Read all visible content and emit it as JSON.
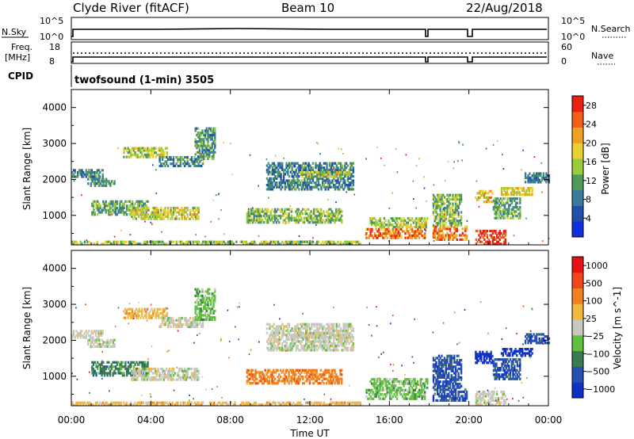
{
  "header": {
    "station": "Clyde River (fitACF)",
    "beam": "Beam 10",
    "date": "22/Aug/2018"
  },
  "status_panels": {
    "nsky": {
      "label": "N.Sky",
      "ticks": [
        "10^5",
        "10^0"
      ]
    },
    "nsearch": {
      "label": "N.Search",
      "ticks": [
        "10^5",
        "10^0"
      ]
    },
    "freq": {
      "label_line1": "Freq.",
      "label_line2": "[MHz]",
      "ticks": [
        "18",
        "8"
      ]
    },
    "nave": {
      "label": "Nave",
      "ticks": [
        "60",
        "0"
      ]
    },
    "cpid": {
      "label": "CPID",
      "value": "twofsound (1-min) 3505"
    }
  },
  "colors": {
    "power": [
      "#1030e0",
      "#2050a8",
      "#3a7a9a",
      "#4f9a5a",
      "#9acc3a",
      "#e8d030",
      "#f0a020",
      "#f06018",
      "#e82010"
    ],
    "velocity": [
      "#1030c8",
      "#2850b0",
      "#3a7a50",
      "#62c040",
      "#c8c8c0",
      "#f0b840",
      "#f08020",
      "#f04818",
      "#e81010"
    ]
  },
  "chart_data": [
    {
      "type": "heatmap",
      "name": "power",
      "ylabel": "Slant Range [km]",
      "xlabel": "Time UT",
      "x_ticks": [
        "00:00",
        "04:00",
        "08:00",
        "12:00",
        "16:00",
        "20:00",
        "00:00"
      ],
      "y_ticks": [
        1000,
        2000,
        3000,
        4000
      ],
      "xlim_hours": [
        0,
        24
      ],
      "ylim_km": [
        180,
        4500
      ],
      "colorbar": {
        "label": "Power [dB]",
        "ticks": [
          4,
          8,
          12,
          16,
          20,
          24,
          28
        ],
        "range": [
          0,
          30
        ]
      },
      "data_gaps_hours": [
        [
          17.95,
          18.1
        ],
        [
          20.05,
          20.25
        ]
      ],
      "regions": [
        {
          "t0": 0.0,
          "t1": 1.6,
          "r0": 2050,
          "r1": 2250,
          "v": 9
        },
        {
          "t0": 0.8,
          "t1": 2.2,
          "r0": 1800,
          "r1": 2000,
          "v": 10
        },
        {
          "t0": 1.0,
          "t1": 3.8,
          "r0": 1000,
          "r1": 1380,
          "v": 12
        },
        {
          "t0": 3.0,
          "t1": 6.4,
          "r0": 880,
          "r1": 1200,
          "v": 17
        },
        {
          "t0": 2.6,
          "t1": 4.8,
          "r0": 2600,
          "r1": 2850,
          "v": 16
        },
        {
          "t0": 4.4,
          "t1": 6.6,
          "r0": 2350,
          "r1": 2650,
          "v": 9
        },
        {
          "t0": 6.2,
          "t1": 7.2,
          "r0": 2550,
          "r1": 3450,
          "v": 11
        },
        {
          "t0": 0.0,
          "t1": 14.5,
          "r0": 180,
          "r1": 300,
          "v": 14
        },
        {
          "t0": 8.8,
          "t1": 13.6,
          "r0": 780,
          "r1": 1200,
          "v": 14
        },
        {
          "t0": 9.8,
          "t1": 14.2,
          "r0": 1700,
          "r1": 2450,
          "v": 9
        },
        {
          "t0": 11.5,
          "t1": 14.0,
          "r0": 2050,
          "r1": 2200,
          "v": 16
        },
        {
          "t0": 14.8,
          "t1": 17.8,
          "r0": 350,
          "r1": 650,
          "v": 24
        },
        {
          "t0": 15.0,
          "t1": 17.9,
          "r0": 650,
          "r1": 900,
          "v": 16
        },
        {
          "t0": 18.1,
          "t1": 19.9,
          "r0": 300,
          "r1": 700,
          "v": 23
        },
        {
          "t0": 18.1,
          "t1": 19.6,
          "r0": 700,
          "r1": 1600,
          "v": 14
        },
        {
          "t0": 20.25,
          "t1": 21.8,
          "r0": 180,
          "r1": 550,
          "v": 29
        },
        {
          "t0": 20.3,
          "t1": 21.2,
          "r0": 1350,
          "r1": 1700,
          "v": 20
        },
        {
          "t0": 21.2,
          "t1": 22.6,
          "r0": 900,
          "r1": 1500,
          "v": 12
        },
        {
          "t0": 21.6,
          "t1": 23.2,
          "r0": 1550,
          "r1": 1750,
          "v": 18
        },
        {
          "t0": 22.8,
          "t1": 24.0,
          "r0": 1900,
          "r1": 2200,
          "v": 8
        }
      ]
    },
    {
      "type": "heatmap",
      "name": "velocity",
      "ylabel": "Slant Range [km]",
      "xlabel": "Time UT",
      "x_ticks": [
        "00:00",
        "04:00",
        "08:00",
        "12:00",
        "16:00",
        "20:00",
        "00:00"
      ],
      "y_ticks": [
        1000,
        2000,
        3000,
        4000
      ],
      "xlim_hours": [
        0,
        24
      ],
      "ylim_km": [
        180,
        4500
      ],
      "colorbar": {
        "label": "Velocity [m s^-1]",
        "ticks": [
          "1000",
          "500",
          "100",
          "25",
          "−25",
          "−100",
          "−500",
          "−1000"
        ]
      },
      "data_gaps_hours": [
        [
          17.95,
          18.1
        ],
        [
          20.05,
          20.25
        ]
      ],
      "regions": [
        {
          "t0": 0.0,
          "t1": 1.6,
          "r0": 2050,
          "r1": 2250,
          "v": 4
        },
        {
          "t0": 0.8,
          "t1": 2.2,
          "r0": 1800,
          "r1": 2000,
          "v": 4
        },
        {
          "t0": 1.0,
          "t1": 3.8,
          "r0": 1000,
          "r1": 1380,
          "v": 2
        },
        {
          "t0": 3.0,
          "t1": 6.4,
          "r0": 880,
          "r1": 1200,
          "v": 4
        },
        {
          "t0": 2.6,
          "t1": 4.8,
          "r0": 2600,
          "r1": 2850,
          "v": 5
        },
        {
          "t0": 4.4,
          "t1": 6.6,
          "r0": 2350,
          "r1": 2650,
          "v": 4
        },
        {
          "t0": 6.2,
          "t1": 7.2,
          "r0": 2550,
          "r1": 3450,
          "v": 3
        },
        {
          "t0": 0.0,
          "t1": 14.5,
          "r0": 180,
          "r1": 300,
          "v": 5
        },
        {
          "t0": 8.8,
          "t1": 13.6,
          "r0": 780,
          "r1": 1200,
          "v": 6
        },
        {
          "t0": 9.8,
          "t1": 14.2,
          "r0": 1700,
          "r1": 2450,
          "v": 4
        },
        {
          "t0": 11.5,
          "t1": 14.0,
          "r0": 2050,
          "r1": 2200,
          "v": 4
        },
        {
          "t0": 14.8,
          "t1": 17.8,
          "r0": 350,
          "r1": 650,
          "v": 3
        },
        {
          "t0": 15.0,
          "t1": 17.9,
          "r0": 650,
          "r1": 900,
          "v": 3
        },
        {
          "t0": 18.1,
          "t1": 19.9,
          "r0": 300,
          "r1": 700,
          "v": 1
        },
        {
          "t0": 18.1,
          "t1": 19.6,
          "r0": 700,
          "r1": 1600,
          "v": 1
        },
        {
          "t0": 20.25,
          "t1": 21.8,
          "r0": 180,
          "r1": 550,
          "v": 4
        },
        {
          "t0": 20.3,
          "t1": 21.2,
          "r0": 1350,
          "r1": 1700,
          "v": 0
        },
        {
          "t0": 21.2,
          "t1": 22.6,
          "r0": 900,
          "r1": 1500,
          "v": 1
        },
        {
          "t0": 21.6,
          "t1": 23.2,
          "r0": 1550,
          "r1": 1750,
          "v": 0
        },
        {
          "t0": 22.8,
          "t1": 24.0,
          "r0": 1900,
          "r1": 2200,
          "v": 1
        }
      ]
    }
  ]
}
